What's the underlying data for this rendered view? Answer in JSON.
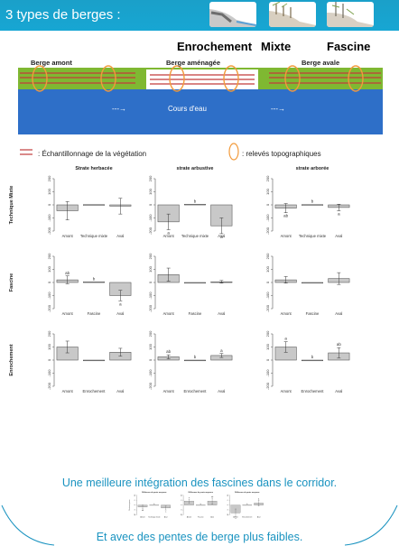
{
  "header": {
    "title": "3 types de berges :",
    "types": [
      "Enrochement",
      "Mixte",
      "Fascine"
    ],
    "accent": "#17a6d3"
  },
  "diagram": {
    "bank_upstream": "Berge amont",
    "bank_managed": "Berge aménagée",
    "bank_downstream": "Berge avale",
    "stream": "Cours d'eau",
    "arrow": "---→",
    "colors": {
      "grass": "#7fb832",
      "water": "#2e6fc8",
      "sampling_line": "#c23b3b",
      "survey_ellipse": "#f29a3b"
    }
  },
  "legend": {
    "sampling": ": Échantillonnage de la végétation",
    "survey": ": relevés topographiques"
  },
  "chart_grid": {
    "column_titles": [
      "Strate herbacée",
      "strate arbustive",
      "strate arborée"
    ],
    "row_labels": [
      "Technique Mixte",
      "Fascine",
      "Enrochement"
    ],
    "y_ticks": [
      "-200",
      "-100",
      "0",
      "100",
      "200"
    ]
  },
  "chart_data": [
    {
      "type": "bar",
      "row": 0,
      "col": 0,
      "categories": [
        "Amont",
        "Technique mixte",
        "Aval"
      ],
      "values": [
        -45,
        2,
        -10
      ],
      "errors": [
        70,
        0,
        60
      ],
      "letters": [
        "",
        "",
        ""
      ],
      "ylim": [
        -200,
        200
      ]
    },
    {
      "type": "bar",
      "row": 0,
      "col": 1,
      "categories": [
        "Amont",
        "Technique mixte",
        "Aval"
      ],
      "values": [
        -130,
        5,
        -160
      ],
      "errors": [
        60,
        0,
        60
      ],
      "letters": [
        "a",
        "b",
        "a"
      ],
      "ylim": [
        -200,
        200
      ]
    },
    {
      "type": "bar",
      "row": 0,
      "col": 2,
      "categories": [
        "Amont",
        "Technique mixte",
        "Aval"
      ],
      "values": [
        -25,
        2,
        -20
      ],
      "errors": [
        35,
        0,
        25
      ],
      "letters": [
        "ab",
        "b",
        "a"
      ],
      "ylim": [
        -200,
        200
      ]
    },
    {
      "type": "bar",
      "row": 1,
      "col": 0,
      "categories": [
        "Amont",
        "Fascine",
        "Aval"
      ],
      "values": [
        20,
        5,
        -100
      ],
      "errors": [
        30,
        0,
        40
      ],
      "letters": [
        "ab",
        "b",
        "a"
      ],
      "ylim": [
        -200,
        200
      ]
    },
    {
      "type": "bar",
      "row": 1,
      "col": 1,
      "categories": [
        "Amont",
        "Fascine",
        "Aval"
      ],
      "values": [
        60,
        0,
        5
      ],
      "errors": [
        50,
        0,
        10
      ],
      "letters": [
        "",
        "",
        ""
      ],
      "ylim": [
        -200,
        200
      ]
    },
    {
      "type": "bar",
      "row": 1,
      "col": 2,
      "categories": [
        "Amont",
        "Fascine",
        "Aval"
      ],
      "values": [
        20,
        0,
        30
      ],
      "errors": [
        25,
        0,
        45
      ],
      "letters": [
        "",
        "",
        ""
      ],
      "ylim": [
        -200,
        200
      ]
    },
    {
      "type": "bar",
      "row": 2,
      "col": 0,
      "categories": [
        "Amont",
        "Enrochement",
        "Aval"
      ],
      "values": [
        100,
        0,
        60
      ],
      "errors": [
        45,
        0,
        30
      ],
      "letters": [
        "",
        "",
        ""
      ],
      "ylim": [
        -200,
        200
      ]
    },
    {
      "type": "bar",
      "row": 2,
      "col": 1,
      "categories": [
        "Amont",
        "Enrochement",
        "Aval"
      ],
      "values": [
        25,
        0,
        35
      ],
      "errors": [
        15,
        0,
        15
      ],
      "letters": [
        "ab",
        "b",
        "a"
      ],
      "ylim": [
        -200,
        200
      ]
    },
    {
      "type": "bar",
      "row": 2,
      "col": 2,
      "categories": [
        "Amont",
        "Enrochement",
        "Aval"
      ],
      "values": [
        100,
        0,
        55
      ],
      "errors": [
        40,
        0,
        40
      ],
      "letters": [
        "a",
        "b",
        "ab"
      ],
      "ylim": [
        -200,
        200
      ]
    }
  ],
  "caption_corridor": "Une meilleure intégration des fascines dans le corridor.",
  "slope_grid": {
    "title": "Différence de pente moyenne",
    "ylabel": "Pente moyenne",
    "y_ticks": [
      "-10",
      "-5",
      "0",
      "5",
      "10"
    ]
  },
  "slope_chart_data": [
    {
      "type": "bar",
      "categories": [
        "Amont",
        "Technique mixte",
        "Aval"
      ],
      "values": [
        -2,
        0,
        -3
      ],
      "errors": [
        2,
        0,
        2
      ],
      "letters": [
        "ab",
        "b",
        "a"
      ],
      "ylim": [
        -10,
        10
      ]
    },
    {
      "type": "bar",
      "categories": [
        "Amont",
        "Fascine",
        "Aval"
      ],
      "values": [
        4,
        0,
        4
      ],
      "errors": [
        2,
        0,
        3
      ],
      "letters": [
        "a",
        "b",
        "ab"
      ],
      "ylim": [
        -10,
        10
      ]
    },
    {
      "type": "bar",
      "categories": [
        "Amont",
        "Enrochement",
        "Aval"
      ],
      "values": [
        -8,
        0,
        2
      ],
      "errors": [
        4,
        0,
        3
      ],
      "letters": [
        "a",
        "b",
        "b"
      ],
      "ylim": [
        -10,
        10
      ]
    }
  ],
  "caption_slope": "Et avec des pentes de berge plus faibles."
}
